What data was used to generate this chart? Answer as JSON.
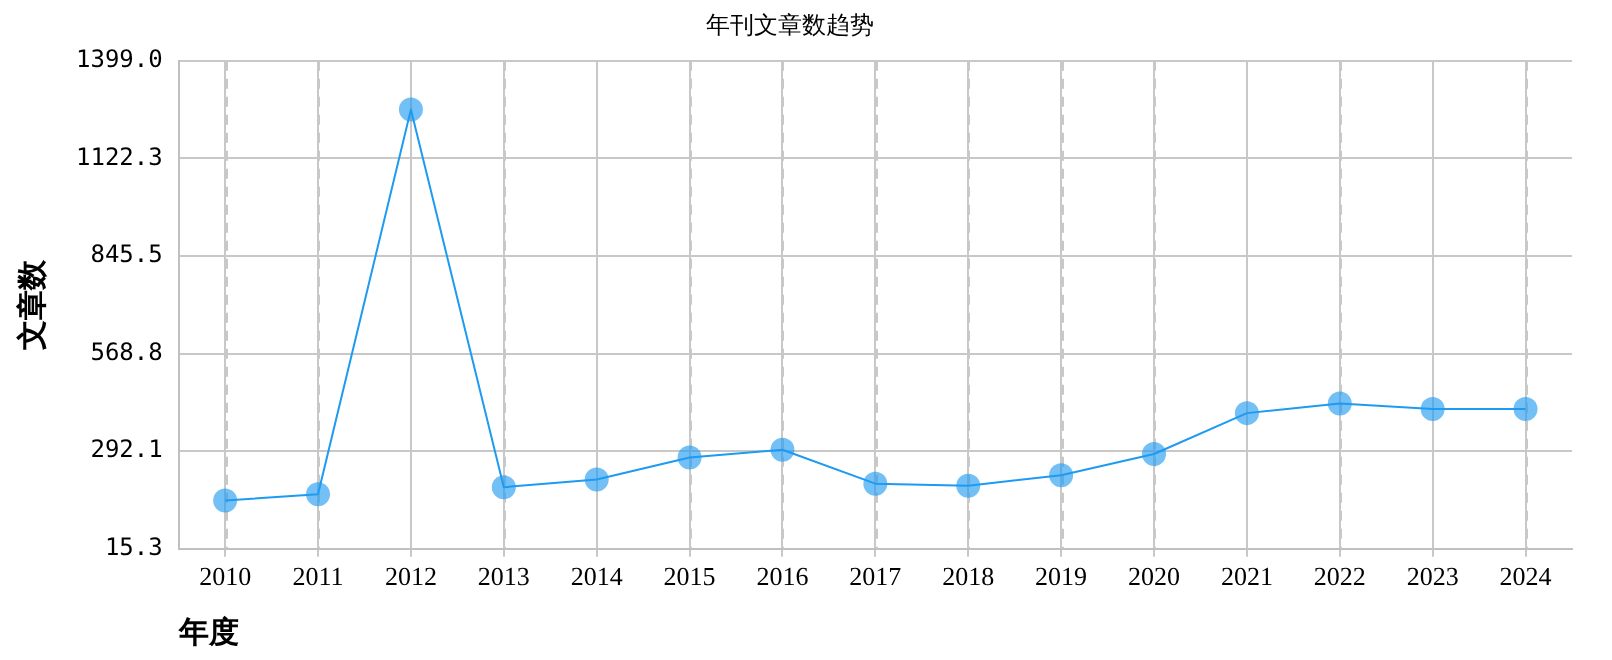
{
  "chart_data": {
    "type": "line",
    "title": "年刊文章数趋势",
    "xlabel": "年度",
    "ylabel": "文章数",
    "categories": [
      "2010",
      "2011",
      "2012",
      "2013",
      "2014",
      "2015",
      "2016",
      "2017",
      "2018",
      "2019",
      "2020",
      "2021",
      "2022",
      "2023",
      "2024"
    ],
    "series": [
      {
        "color": "#1e9af0",
        "values": [
          152,
          170,
          1261,
          190,
          212,
          274,
          296,
          200,
          194,
          224,
          284,
          400,
          427,
          412,
          412
        ]
      }
    ],
    "ylim": [
      15.3,
      1399.0
    ],
    "yticks": [
      {
        "value": 15.3,
        "label": "15.3"
      },
      {
        "value": 292.1,
        "label": "292.1"
      },
      {
        "value": 568.8,
        "label": "568.8"
      },
      {
        "value": 845.5,
        "label": "845.5"
      },
      {
        "value": 1122.3,
        "label": "1122.3"
      },
      {
        "value": 1399.0,
        "label": "1399.0"
      }
    ],
    "grid": true,
    "legend": false,
    "marker": "circle",
    "line_style": "solid"
  }
}
